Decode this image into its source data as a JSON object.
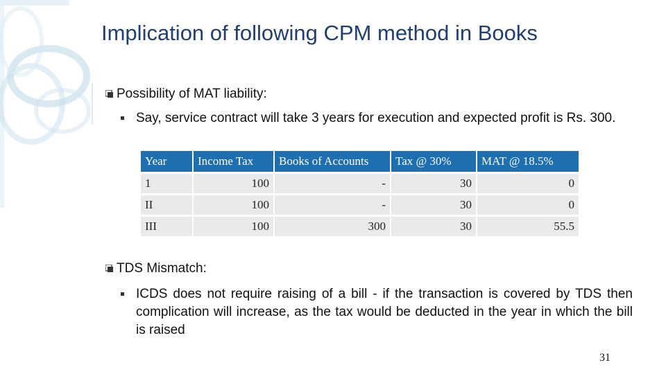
{
  "slide": {
    "title": "Implication of following CPM method in Books",
    "page_number": "31"
  },
  "section1": {
    "heading": "Possibility of MAT liability:",
    "point": "Say, service contract will take 3 years for execution and expected profit is Rs. 300."
  },
  "table": {
    "headers": [
      "Year",
      "Income Tax",
      "Books of Accounts",
      "Tax @ 30%",
      "MAT @ 18.5%"
    ],
    "rows": [
      [
        "1",
        "100",
        "-",
        "30",
        "0"
      ],
      [
        "II",
        "100",
        "-",
        "30",
        "0"
      ],
      [
        "III",
        "100",
        "300",
        "30",
        "55.5"
      ]
    ]
  },
  "section2": {
    "heading": "TDS Mismatch:",
    "point": "ICDS does not require raising of a bill - if the transaction is covered by TDS then complication will increase, as the tax would be deducted in the year in which the bill is raised"
  },
  "colors": {
    "title": "#1f3f6e",
    "table_header": "#1e6fb0",
    "table_cell": "#e9eaeb",
    "deco": "#b9d7e8"
  }
}
